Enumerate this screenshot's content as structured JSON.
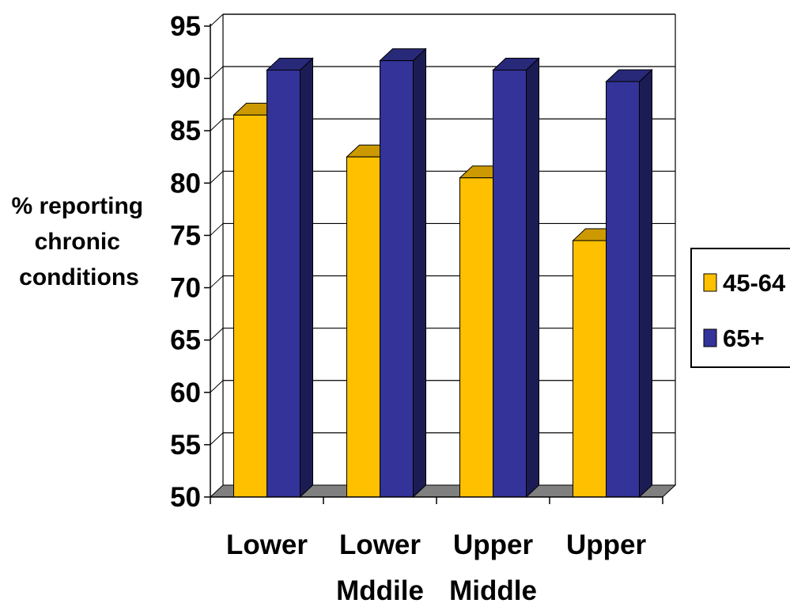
{
  "chart_data": {
    "type": "bar",
    "style": "3d-clustered-column",
    "ylabel": [
      "% reporting",
      "chronic",
      "conditions"
    ],
    "xlabel": "",
    "ylim": [
      50,
      95
    ],
    "yticks": [
      50,
      55,
      60,
      65,
      70,
      75,
      80,
      85,
      90,
      95
    ],
    "grid": true,
    "legend_position": "right",
    "categories": [
      [
        "Lower"
      ],
      [
        "Lower",
        "Mddile"
      ],
      [
        "Upper",
        "Middle"
      ],
      [
        "Upper"
      ]
    ],
    "series": [
      {
        "name": "45-64",
        "color": "#FFC000",
        "values": [
          86.5,
          82.5,
          80.5,
          74.5
        ]
      },
      {
        "name": "65+",
        "color": "#333399",
        "values": [
          90.8,
          91.7,
          90.8,
          89.7
        ]
      }
    ]
  }
}
